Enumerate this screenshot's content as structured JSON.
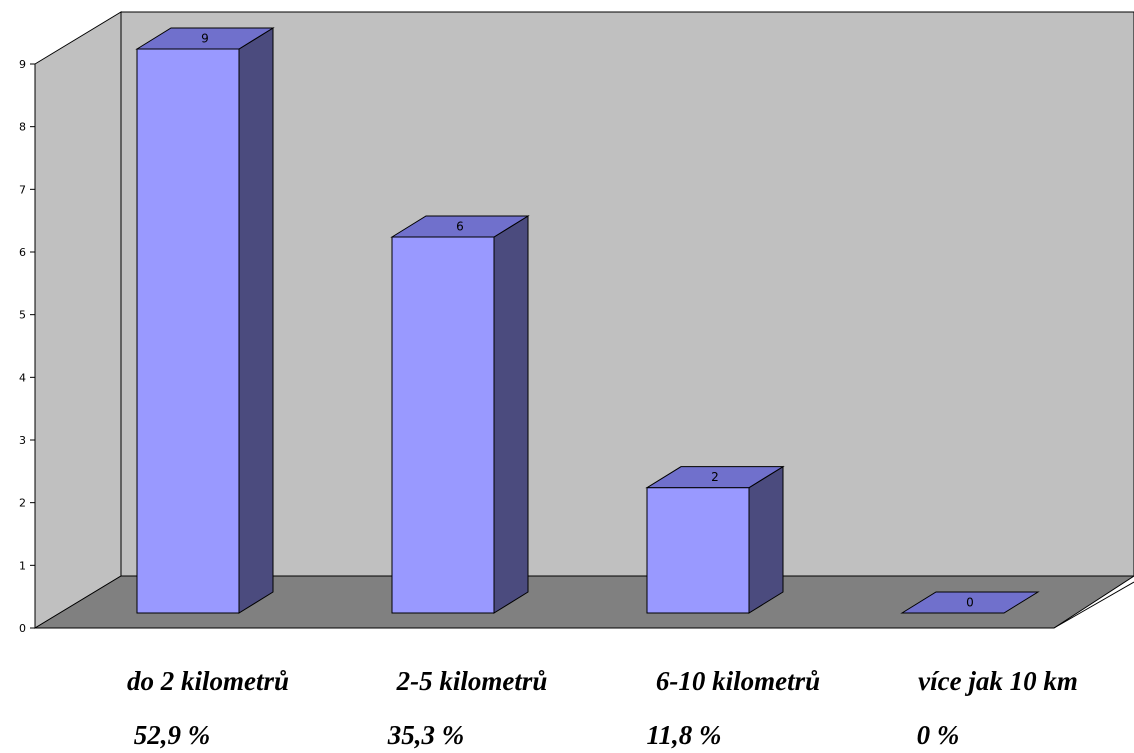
{
  "chart_data": {
    "type": "bar",
    "categories": [
      "do 2 kilometrů",
      "2-5 kilometrů",
      "6-10 kilometrů",
      "více jak 10 km"
    ],
    "values": [
      9,
      6,
      2,
      0
    ],
    "percent_labels": [
      "52,9 %",
      "35,3 %",
      "11,8 %",
      "0 %"
    ],
    "data_labels": [
      "9",
      "6",
      "2",
      "0"
    ],
    "y_ticks": [
      "0",
      "1",
      "2",
      "3",
      "4",
      "5",
      "6",
      "7",
      "8",
      "9"
    ],
    "ylim": [
      0,
      9
    ],
    "style": "3d",
    "colors": {
      "bar_front": "#9999ff",
      "bar_side": "#4b4b7e",
      "bar_top": "#7070cc",
      "back_wall": "#c0c0c0",
      "floor": "#808080"
    }
  }
}
